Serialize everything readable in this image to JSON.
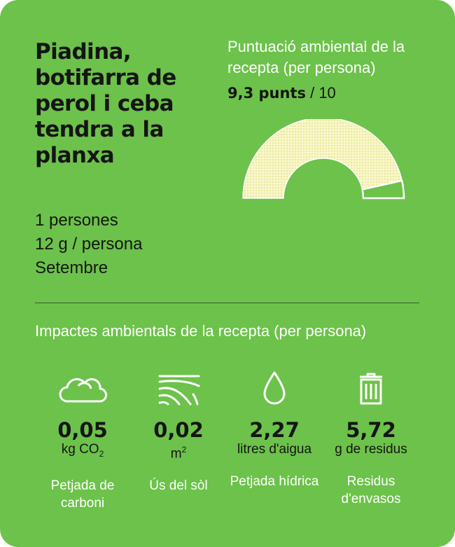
{
  "recipe": {
    "title": "Piadina, botifarra de perol i ceba tendra a la planxa",
    "people": "1 persones",
    "portion": "12 g / persona",
    "month": "Setembre"
  },
  "score": {
    "label": "Puntuació ambiental de la recepta (per persona)",
    "value_text": "9,3 punts",
    "max_text": " / 10",
    "value": 9.3,
    "max": 10
  },
  "impacts": {
    "title": "Impactes ambientals de la recepta (per persona)",
    "items": [
      {
        "icon": "cloud-icon",
        "value": "0,05",
        "unit": "kg CO",
        "unit_sub": "2",
        "label": "Petjada de carboni"
      },
      {
        "icon": "land-icon",
        "value": "0,02",
        "unit": "m",
        "unit_sup": "2",
        "label": "Ús del sòl"
      },
      {
        "icon": "water-drop-icon",
        "value": "2,27",
        "unit": "litres d'aigua",
        "label": "Petjada hídrica"
      },
      {
        "icon": "trash-icon",
        "value": "5,72",
        "unit": "g de residus",
        "label": "Residus d'envasos"
      }
    ]
  },
  "colors": {
    "background": "#6cc24a",
    "gauge_fill": "#fbf6c9",
    "gauge_dots": "#c9dc63",
    "text_light": "#ffffff",
    "text_dark": "#151515"
  }
}
